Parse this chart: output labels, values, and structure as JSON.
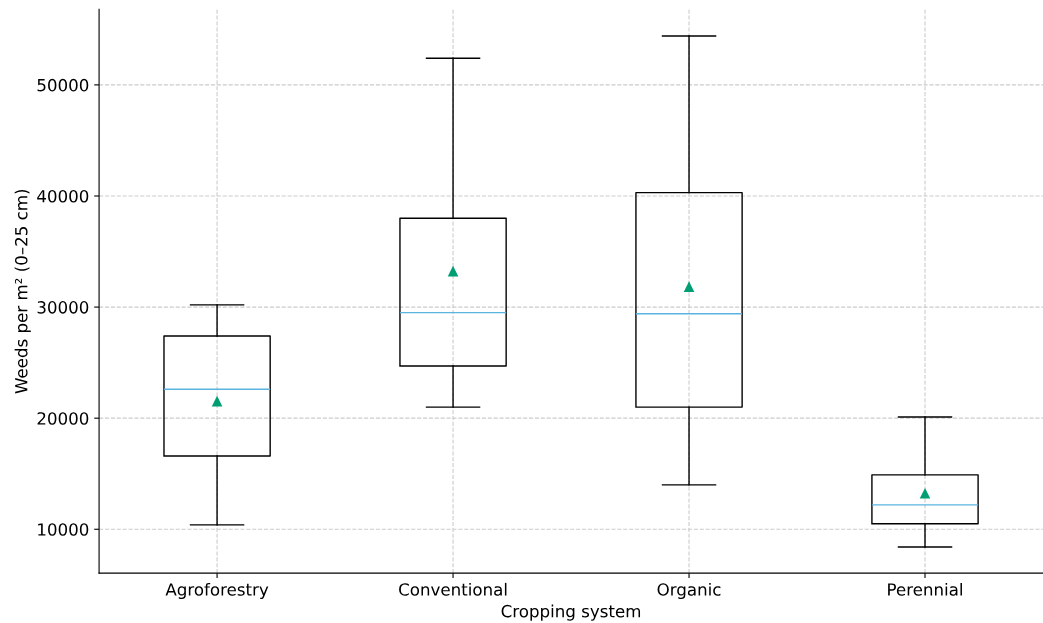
{
  "chart_data": {
    "type": "box",
    "xlabel": "Cropping system",
    "ylabel": "Weeds per m² (0–25 cm)",
    "categories": [
      "Agroforestry",
      "Conventional",
      "Organic",
      "Perennial"
    ],
    "boxes": [
      {
        "low": 10400,
        "q1": 16600,
        "median": 22600,
        "q3": 27400,
        "high": 30200,
        "mean": 21500
      },
      {
        "low": 21000,
        "q1": 24700,
        "median": 29500,
        "q3": 38000,
        "high": 52400,
        "mean": 33200
      },
      {
        "low": 14000,
        "q1": 21000,
        "median": 29400,
        "q3": 40300,
        "high": 54400,
        "mean": 31800
      },
      {
        "low": 8400,
        "q1": 10500,
        "median": 12200,
        "q3": 14900,
        "high": 20100,
        "mean": 13200
      }
    ],
    "ylim": [
      6050,
      56800
    ],
    "yticks": [
      10000,
      20000,
      30000,
      40000,
      50000
    ],
    "grid": true
  }
}
